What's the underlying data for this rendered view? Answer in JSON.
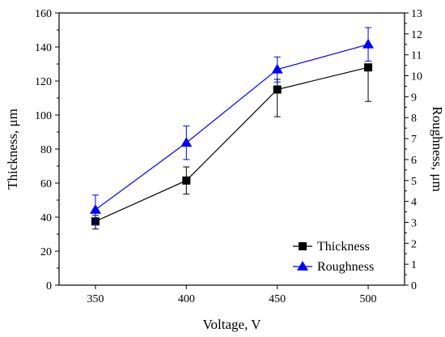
{
  "chart_data": {
    "type": "line",
    "x": [
      350,
      400,
      450,
      500
    ],
    "xlabel": "Voltage, V",
    "ylabel": "Thickness, μm",
    "y2label": "Roughness, μm",
    "xlim": [
      330,
      520
    ],
    "ylim": [
      0,
      160
    ],
    "y2lim": [
      0,
      13
    ],
    "xticks": [
      350,
      400,
      450,
      500
    ],
    "yticks": [
      0,
      20,
      40,
      60,
      80,
      100,
      120,
      140,
      160
    ],
    "y2ticks": [
      0,
      1,
      2,
      3,
      4,
      5,
      6,
      7,
      8,
      9,
      10,
      11,
      12,
      13
    ],
    "grid": false,
    "legend_position": "bottom-right",
    "series": [
      {
        "name": "Thickness",
        "axis": "left",
        "marker": "square",
        "color": "#000000",
        "values": [
          37.5,
          61.5,
          115,
          128
        ],
        "error_plus": [
          3.5,
          8,
          6,
          0
        ],
        "error_minus": [
          4.5,
          8,
          16,
          20
        ]
      },
      {
        "name": "Roughness",
        "axis": "right",
        "marker": "triangle",
        "color": "#0000ff",
        "values": [
          3.6,
          6.8,
          10.3,
          11.5
        ],
        "error_plus": [
          0.7,
          0.8,
          0.6,
          0.8
        ],
        "error_minus": [
          0.7,
          0.8,
          0.6,
          0.8
        ]
      }
    ]
  }
}
